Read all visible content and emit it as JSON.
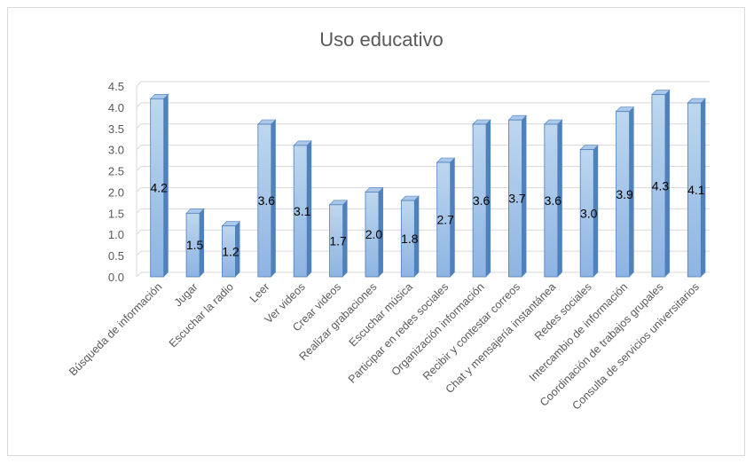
{
  "chart_data": {
    "type": "bar",
    "title": "Uso educativo",
    "xlabel": "",
    "ylabel": "",
    "ylim": [
      0,
      4.5
    ],
    "yticks": [
      "0.0",
      "0.5",
      "1.0",
      "1.5",
      "2.0",
      "2.5",
      "3.0",
      "3.5",
      "4.0",
      "4.5"
    ],
    "grid": true,
    "legend": "none",
    "categories": [
      "Búsqueda de información",
      "Jugar",
      "Escuchar la radio",
      "Leer",
      "Ver videos",
      "Crear videos",
      "Realizar grabaciones",
      "Escuchar música",
      "Participar en redes sociales",
      "Organización información",
      "Recibir y contestar correos",
      "Chat y mensajería instantánea",
      "Redes sociales",
      "Intercambio de información",
      "Coordinación de trabajos grupales",
      "Consulta de servicios universitarios"
    ],
    "values": [
      4.2,
      1.5,
      1.2,
      3.6,
      3.1,
      1.7,
      2.0,
      1.8,
      2.7,
      3.6,
      3.7,
      3.6,
      3.0,
      3.9,
      4.3,
      4.1
    ],
    "labels": [
      "4.2",
      "1.5",
      "1.2",
      "3.6",
      "3.1",
      "1.7",
      "2.0",
      "1.8",
      "2.7",
      "3.6",
      "3.7",
      "3.6",
      "3.0",
      "3.9",
      "4.3",
      "4.1"
    ],
    "colors": {
      "bar_front_top": "#bdd7ee",
      "bar_front_bottom": "#8eb4e3",
      "bar_side": "#4f81bd",
      "bar_top": "#a9c8ea",
      "bar_edge": "#4a7ebb",
      "grid": "#d9d9d9",
      "axis_text": "#595959"
    }
  }
}
